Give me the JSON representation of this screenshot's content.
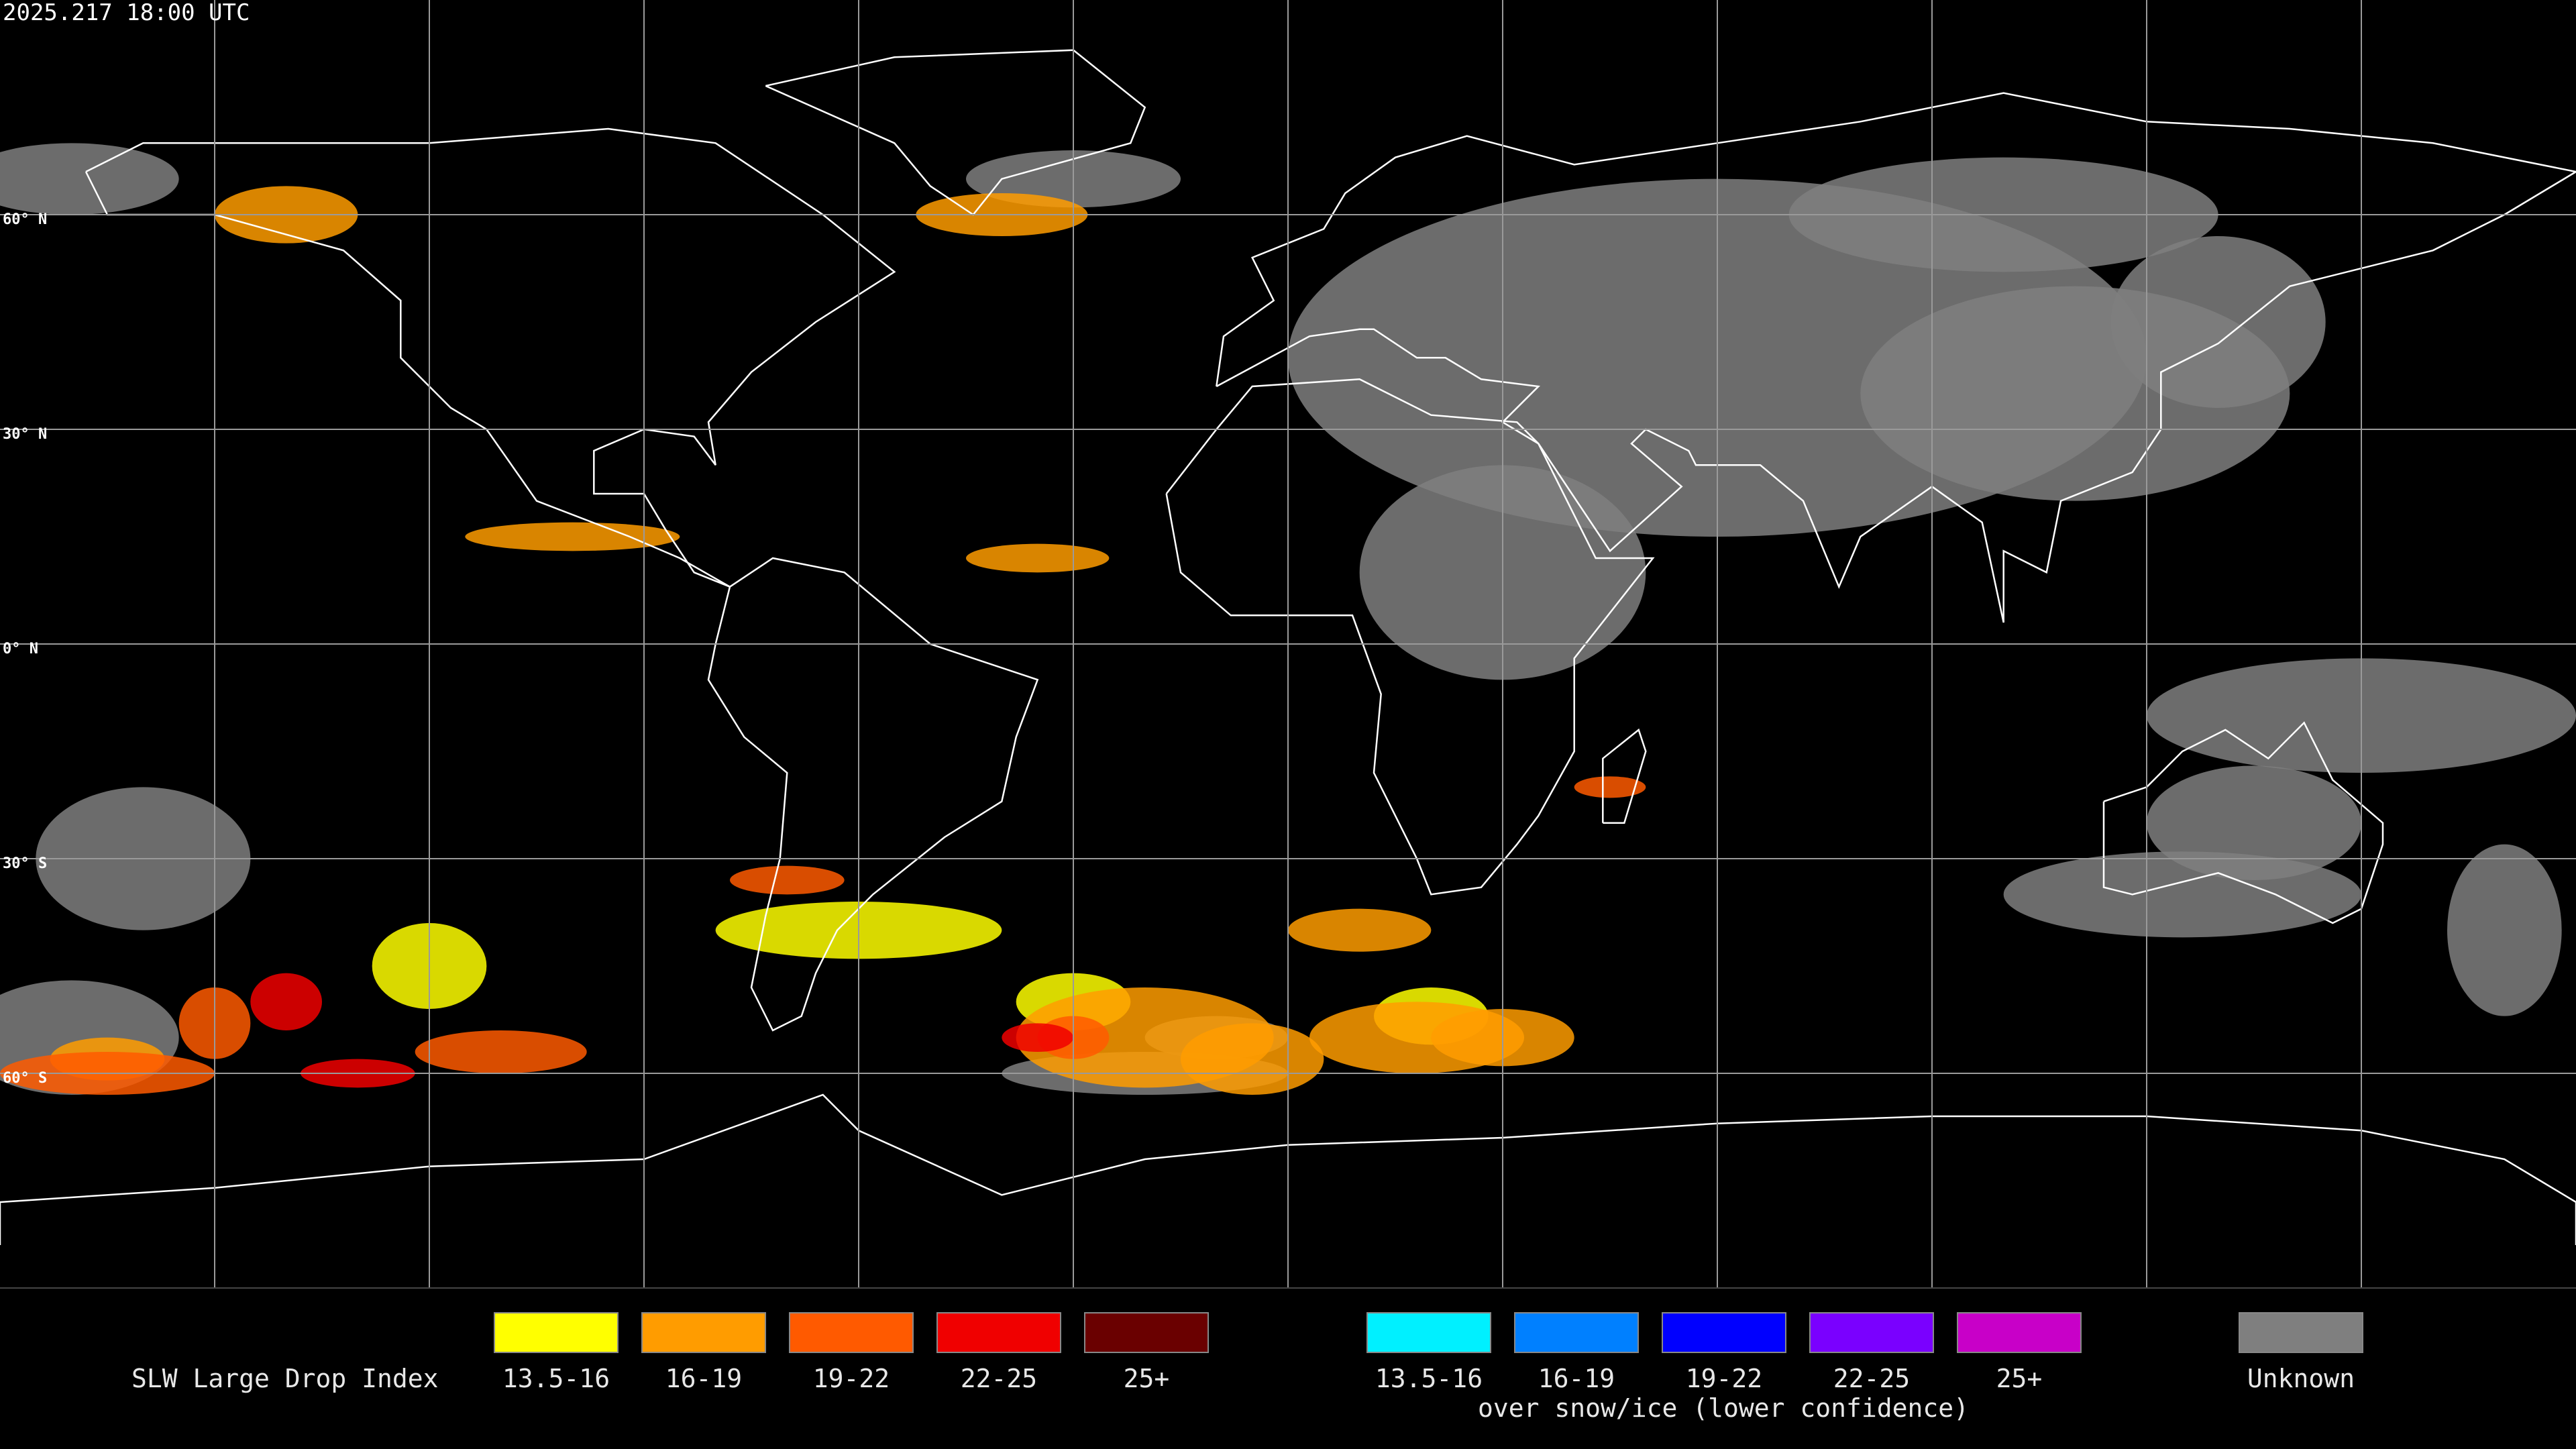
{
  "header": {
    "timestamp": "2025.217 18:00 UTC"
  },
  "map": {
    "latitude_labels": [
      "60° N",
      "30° N",
      "0° N",
      "30° S",
      "60° S"
    ]
  },
  "legend": {
    "title": "SLW Large Drop Index",
    "items": [
      {
        "label": "13.5-16",
        "color": "#ffff00"
      },
      {
        "label": "16-19",
        "color": "#ff9c00"
      },
      {
        "label": "19-22",
        "color": "#ff5a00"
      },
      {
        "label": "22-25",
        "color": "#f00000"
      },
      {
        "label": "25+",
        "color": "#6a0000"
      }
    ],
    "snow_ice_items": [
      {
        "label": "13.5-16",
        "color": "#00f0ff"
      },
      {
        "label": "16-19",
        "color": "#0080ff"
      },
      {
        "label": "19-22",
        "color": "#0000ff"
      },
      {
        "label": "22-25",
        "color": "#7a00ff"
      },
      {
        "label": "25+",
        "color": "#c800c8"
      }
    ],
    "snow_ice_note": "over snow/ice (lower confidence)",
    "unknown": {
      "label": "Unknown",
      "color": "#7f7f7f"
    }
  }
}
